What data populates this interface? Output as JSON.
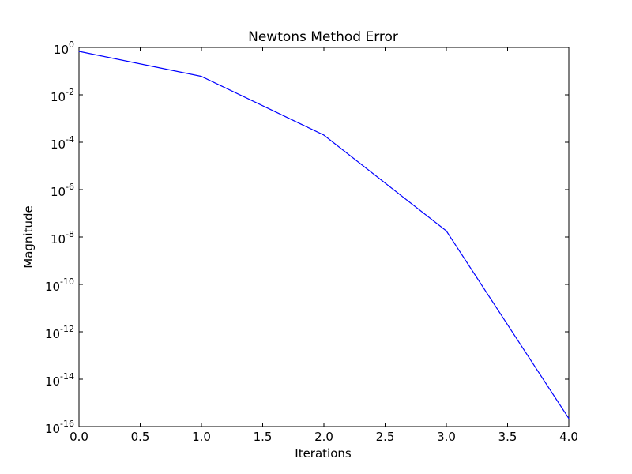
{
  "chart_data": {
    "type": "line",
    "title": "Newtons Method Error",
    "xlabel": "Iterations",
    "ylabel": "Magnitude",
    "xlim": [
      0.0,
      4.0
    ],
    "ylim": [
      1e-16,
      1
    ],
    "yscale": "log",
    "grid": false,
    "x_ticks": [
      "0.0",
      "0.5",
      "1.0",
      "1.5",
      "2.0",
      "2.5",
      "3.0",
      "3.5",
      "4.0"
    ],
    "y_ticks": [
      {
        "base": "10",
        "exp": "0"
      },
      {
        "base": "10",
        "exp": "-2"
      },
      {
        "base": "10",
        "exp": "-4"
      },
      {
        "base": "10",
        "exp": "-6"
      },
      {
        "base": "10",
        "exp": "-8"
      },
      {
        "base": "10",
        "exp": "-10"
      },
      {
        "base": "10",
        "exp": "-12"
      },
      {
        "base": "10",
        "exp": "-14"
      },
      {
        "base": "10",
        "exp": "-16"
      }
    ],
    "series": [
      {
        "color": "#0000ff",
        "x": [
          0,
          1,
          2,
          3,
          4
        ],
        "y": [
          0.68,
          0.06,
          0.0002,
          1.8e-08,
          2.2e-16
        ]
      }
    ]
  }
}
